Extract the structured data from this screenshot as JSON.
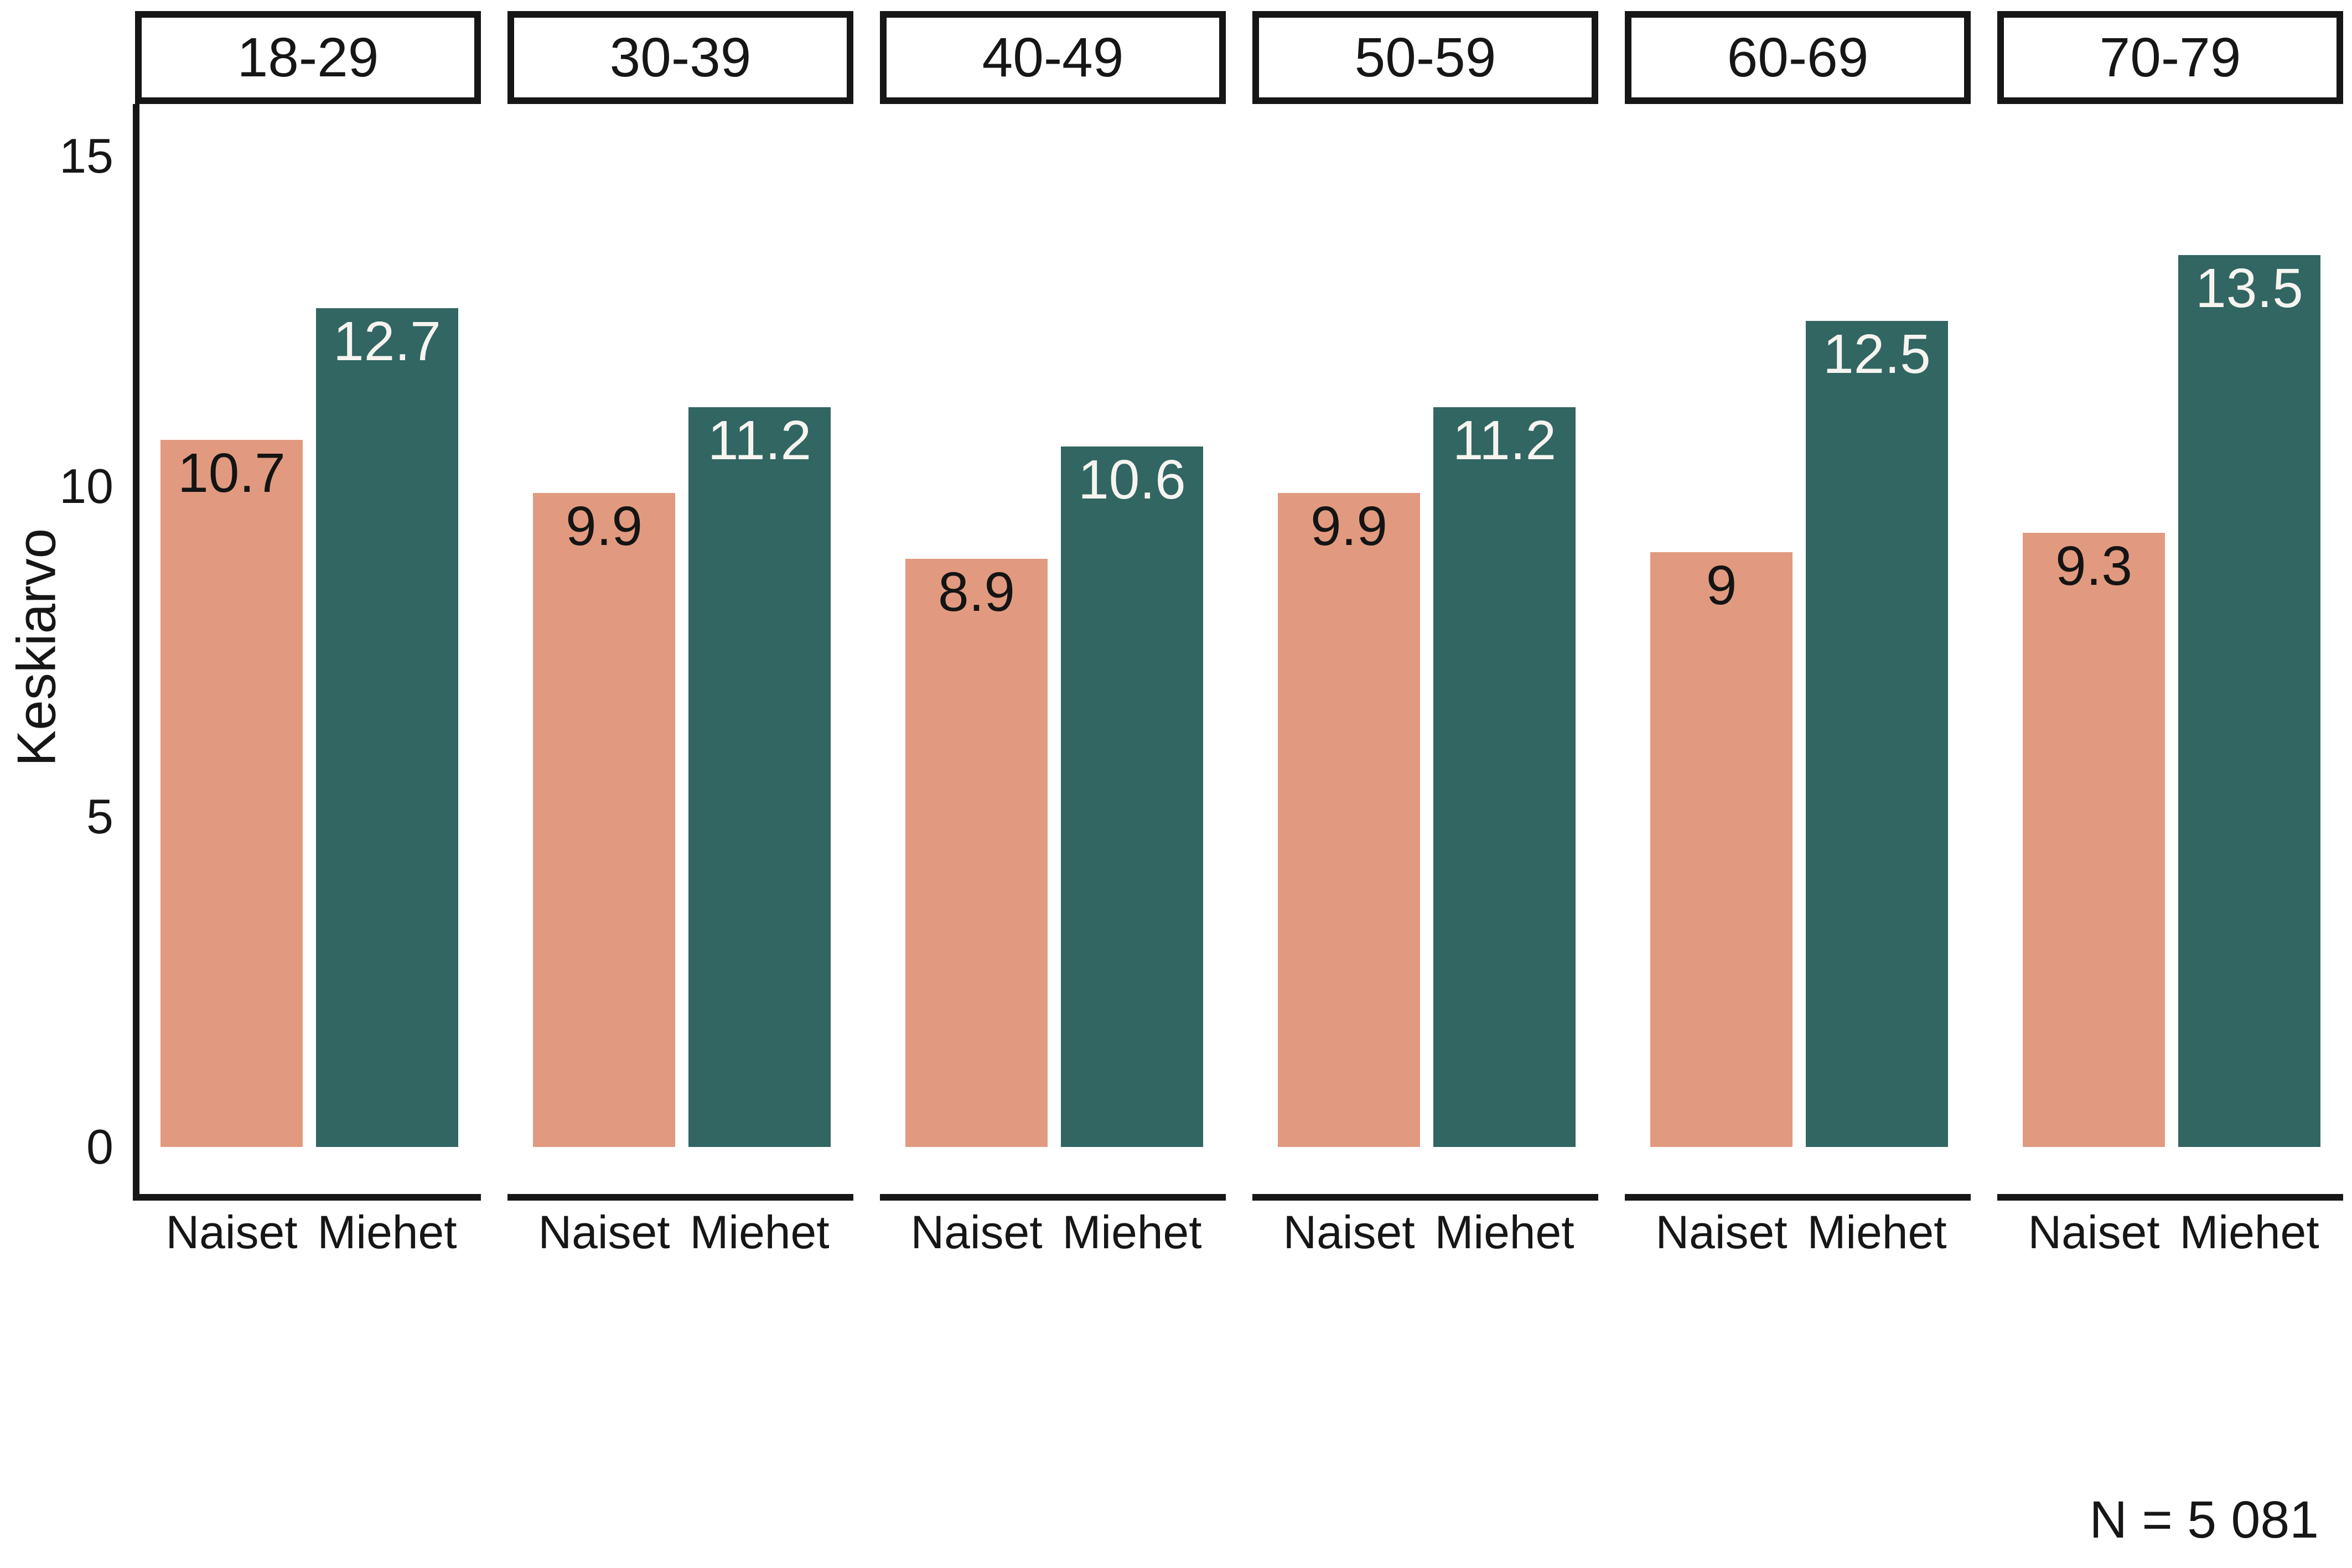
{
  "chart_data": {
    "type": "bar",
    "faceted_by": "age-group",
    "categories": [
      "18-29",
      "30-39",
      "40-49",
      "50-59",
      "60-69",
      "70-79"
    ],
    "series": [
      {
        "name": "Naiset",
        "values": [
          10.7,
          9.9,
          8.9,
          9.9,
          9,
          9.3
        ],
        "color": "#E19A7F",
        "label_color": "#141414"
      },
      {
        "name": "Miehet",
        "values": [
          12.7,
          11.2,
          10.6,
          11.2,
          12.5,
          13.5
        ],
        "color": "#316662",
        "label_color": "#F7F4EF"
      }
    ],
    "title": "",
    "xlabel": "",
    "ylabel": "Keskiarvo",
    "yticks": [
      0,
      5,
      10,
      15
    ],
    "ylim": [
      0,
      15.8
    ],
    "grid": false,
    "legend": false,
    "bar_value_labels": true,
    "annotation": "N = 5 081",
    "axis_color": "#161616",
    "background_color": "#FFFFFF"
  }
}
